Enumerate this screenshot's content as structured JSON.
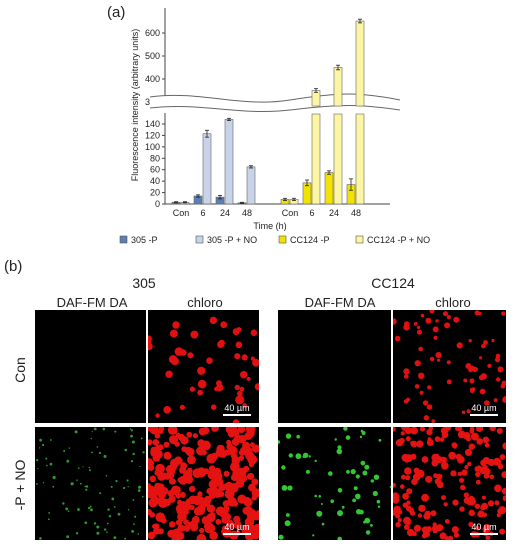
{
  "panel_a_label": "(a)",
  "panel_b_label": "(b)",
  "chart_data": {
    "type": "bar",
    "ylabel": "Fluorescence intensity (arbitrary units)",
    "xlabel": "Time (h)",
    "y_axis_break": [
      150,
      285
    ],
    "ylim": [
      0,
      680
    ],
    "yticks_lower": [
      0,
      20,
      40,
      60,
      80,
      100,
      120,
      140
    ],
    "yticks_upper": [
      300,
      400,
      500,
      600
    ],
    "groups": [
      {
        "name": "305",
        "categories": [
          "Con",
          "6",
          "24",
          "48"
        ],
        "series": [
          {
            "name": "305 -P",
            "color": "#5b7fb5",
            "values": [
              3,
              14,
              12,
              2
            ],
            "errors": [
              1,
              2,
              3,
              1
            ]
          },
          {
            "name": "305 -P + NO",
            "color": "#c8d3ea",
            "values": [
              3,
              123,
              148,
              65
            ],
            "errors": [
              1,
              6,
              2,
              2
            ]
          }
        ]
      },
      {
        "name": "CC124",
        "categories": [
          "Con",
          "6",
          "24",
          "48"
        ],
        "series": [
          {
            "name": "CC124 -P",
            "color": "#f2e200",
            "values": [
              8,
              37,
              55,
              34
            ],
            "errors": [
              2,
              5,
              3,
              10
            ]
          },
          {
            "name": "CC124 -P + NO",
            "color": "#fbf5a4",
            "values": [
              8,
              350,
              450,
              652
            ],
            "errors": [
              2,
              8,
              10,
              8
            ]
          }
        ]
      }
    ],
    "legend": [
      "305 -P",
      "305 -P + NO",
      "CC124 -P",
      "CC124 -P + NO"
    ],
    "legend_position": "bottom"
  },
  "micrographs": {
    "strains": [
      "305",
      "CC124"
    ],
    "columns": [
      "DAF-FM DA",
      "chloro"
    ],
    "rows": [
      "Con",
      "-P + NO"
    ],
    "scale_bar": "40 µm"
  }
}
